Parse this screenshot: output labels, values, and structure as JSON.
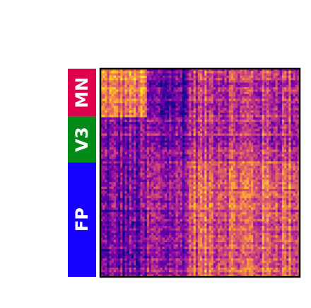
{
  "chart_data": {
    "type": "heatmap",
    "title": "",
    "xlabel": "",
    "ylabel": "",
    "colormap": "plasma",
    "groups": [
      {
        "label": "MN",
        "color": "#e0004c",
        "share": 0.23
      },
      {
        "label": "V3",
        "color": "#008a17",
        "share": 0.22
      },
      {
        "label": "FP",
        "color": "#1600ff",
        "share": 0.55
      }
    ],
    "group_label_color": "#ffffff",
    "frame_color": "#000000",
    "background": "#ffffff",
    "block_means": [
      [
        0.66,
        0.18,
        0.45
      ],
      [
        0.26,
        0.28,
        0.46
      ],
      [
        0.2,
        0.32,
        0.58
      ]
    ]
  }
}
